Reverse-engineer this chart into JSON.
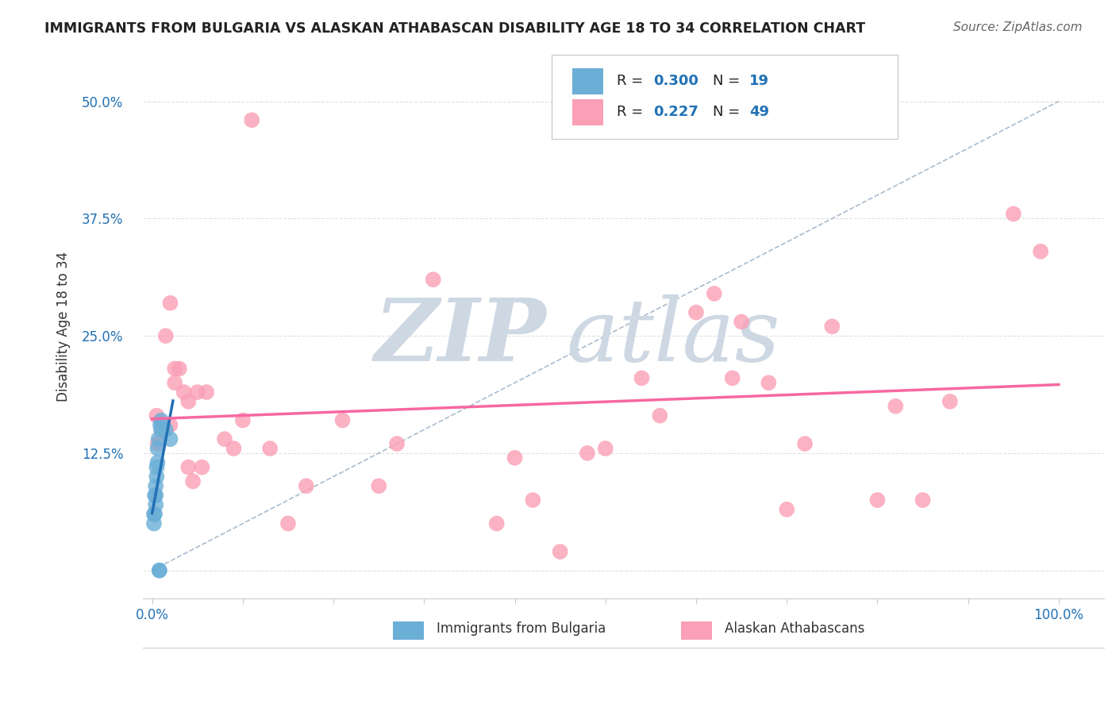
{
  "title": "IMMIGRANTS FROM BULGARIA VS ALASKAN ATHABASCAN DISABILITY AGE 18 TO 34 CORRELATION CHART",
  "source": "Source: ZipAtlas.com",
  "ylabel": "Disability Age 18 to 34",
  "legend_label1": "Immigrants from Bulgaria",
  "legend_label2": "Alaskan Athabascans",
  "r1": "0.300",
  "n1": "19",
  "r2": "0.227",
  "n2": "49",
  "bg_color": "#ffffff",
  "grid_color": "#e0e0e0",
  "blue_color": "#6baed6",
  "pink_color": "#fa9fb5",
  "blue_line_color": "#2171b5",
  "pink_line_color": "#f768a1",
  "dashed_line_color": "#a0b4c8",
  "watermark_zip_color": "#cdd8e3",
  "watermark_atlas_color": "#cdd8e3",
  "yticks": [
    0.0,
    0.125,
    0.25,
    0.375,
    0.5
  ],
  "ytick_labels": [
    "",
    "12.5%",
    "25.0%",
    "37.5%",
    "50.0%"
  ],
  "blue_points_x": [
    0.002,
    0.002,
    0.003,
    0.003,
    0.004,
    0.004,
    0.004,
    0.005,
    0.005,
    0.006,
    0.006,
    0.007,
    0.008,
    0.008,
    0.009,
    0.01,
    0.01,
    0.015,
    0.02
  ],
  "blue_points_y": [
    0.05,
    0.06,
    0.06,
    0.08,
    0.07,
    0.08,
    0.09,
    0.1,
    0.11,
    0.115,
    0.13,
    0.14,
    0.0,
    0.0,
    0.155,
    0.16,
    0.15,
    0.15,
    0.14
  ],
  "pink_points_x": [
    0.005,
    0.006,
    0.01,
    0.015,
    0.02,
    0.02,
    0.025,
    0.025,
    0.03,
    0.035,
    0.04,
    0.04,
    0.045,
    0.05,
    0.055,
    0.06,
    0.08,
    0.09,
    0.1,
    0.11,
    0.13,
    0.15,
    0.17,
    0.21,
    0.25,
    0.27,
    0.31,
    0.38,
    0.4,
    0.42,
    0.45,
    0.48,
    0.5,
    0.54,
    0.56,
    0.6,
    0.62,
    0.64,
    0.65,
    0.68,
    0.7,
    0.72,
    0.75,
    0.8,
    0.82,
    0.85,
    0.88,
    0.95,
    0.98
  ],
  "pink_points_y": [
    0.165,
    0.135,
    0.15,
    0.25,
    0.285,
    0.155,
    0.215,
    0.2,
    0.215,
    0.19,
    0.18,
    0.11,
    0.095,
    0.19,
    0.11,
    0.19,
    0.14,
    0.13,
    0.16,
    0.48,
    0.13,
    0.05,
    0.09,
    0.16,
    0.09,
    0.135,
    0.31,
    0.05,
    0.12,
    0.075,
    0.02,
    0.125,
    0.13,
    0.205,
    0.165,
    0.275,
    0.295,
    0.205,
    0.265,
    0.2,
    0.065,
    0.135,
    0.26,
    0.075,
    0.175,
    0.075,
    0.18,
    0.38,
    0.34
  ]
}
